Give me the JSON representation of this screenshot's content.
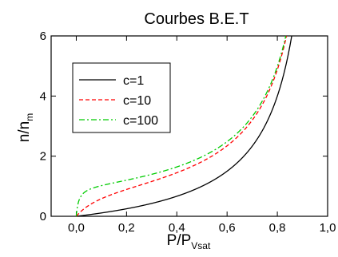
{
  "chart_data": {
    "type": "line",
    "title": "Courbes B.E.T",
    "xlabel": {
      "main": "P/P",
      "sub": "Vsat"
    },
    "ylabel": {
      "main": "n/n",
      "sub": "m"
    },
    "xlim": [
      -0.1,
      1.0
    ],
    "ylim": [
      0,
      6
    ],
    "xticks": [
      0.0,
      0.2,
      0.4,
      0.6,
      0.8,
      1.0
    ],
    "xtick_labels": [
      "0,0",
      "0,2",
      "0,4",
      "0,6",
      "0,8",
      "1,0"
    ],
    "yticks": [
      0,
      2,
      4,
      6
    ],
    "ytick_labels": [
      "0",
      "2",
      "4",
      "6"
    ],
    "grid": false,
    "legend_position": "top-left",
    "series": [
      {
        "name": "c=1",
        "color": "#000000",
        "dash": "solid",
        "c": 1
      },
      {
        "name": "c=10",
        "color": "#ff0000",
        "dash": "dashed",
        "c": 10
      },
      {
        "name": "c=100",
        "color": "#00cc00",
        "dash": "dashdot",
        "c": 100
      }
    ]
  }
}
